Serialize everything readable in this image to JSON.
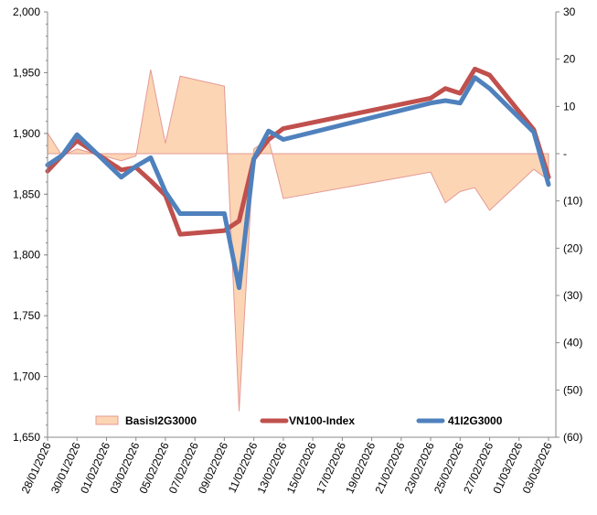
{
  "chart_data": {
    "type": "line",
    "title": "",
    "dates": [
      "28/01/2026",
      "29/01/2026",
      "30/01/2026",
      "02/02/2026",
      "03/02/2026",
      "04/02/2026",
      "05/02/2026",
      "06/02/2026",
      "09/02/2026",
      "10/02/2026",
      "11/02/2026",
      "12/02/2026",
      "13/02/2026",
      "23/02/2026",
      "24/02/2026",
      "25/02/2026",
      "26/02/2026",
      "27/02/2026",
      "02/03/2026",
      "03/03/2026"
    ],
    "day_offsets": [
      0,
      1,
      2,
      5,
      6,
      7,
      8,
      9,
      12,
      13,
      14,
      15,
      16,
      26,
      27,
      28,
      29,
      30,
      33,
      34
    ],
    "x_tick_labels": [
      "28/01/2026",
      "30/01/2026",
      "01/02/2026",
      "03/02/2026",
      "05/02/2026",
      "07/02/2026",
      "09/02/2026",
      "11/02/2026",
      "13/02/2026",
      "15/02/2026",
      "17/02/2026",
      "19/02/2026",
      "21/02/2026",
      "23/02/2026",
      "25/02/2026",
      "27/02/2026",
      "01/03/2026",
      "03/03/2026"
    ],
    "y_left": {
      "min": 1650,
      "max": 2000,
      "step": 50,
      "tick_labels": [
        "2,000",
        "1,950",
        "1,900",
        "1,850",
        "1,800",
        "1,750",
        "1,700",
        "1,650"
      ]
    },
    "y_right": {
      "min": -60,
      "max": 30,
      "step": 10,
      "tick_labels": [
        "30",
        "20",
        "10",
        "-",
        "(10)",
        "(20)",
        "(30)",
        "(40)",
        "(50)",
        "(60)"
      ]
    },
    "series": [
      {
        "name": "BasisI2G3000",
        "type": "area",
        "axis": "right",
        "color": "#fcd5b4",
        "stroke": "#e39a96",
        "values": [
          4.4,
          -0.5,
          1.0,
          -1.5,
          -0.5,
          17.8,
          2.2,
          16.4,
          14.3,
          -54.5,
          1.0,
          3.1,
          -9.5,
          -3.9,
          -10.4,
          -8.0,
          -7.2,
          -12.0,
          -3.3,
          -5.6
        ]
      },
      {
        "name": "VN100-Index",
        "type": "line",
        "axis": "left",
        "color": "#c0504d",
        "values": [
          1869,
          1882,
          1894,
          1870,
          1872,
          1861,
          1849,
          1817,
          1820,
          1828,
          1879,
          1895,
          1904,
          1929,
          1937,
          1933,
          1953,
          1948,
          1903,
          1864
        ]
      },
      {
        "name": "41I2G3000",
        "type": "line",
        "axis": "left",
        "color": "#4f81bd",
        "values": [
          1874,
          1882,
          1899,
          1864,
          1873,
          1880,
          1852,
          1834,
          1834,
          1773,
          1879,
          1902,
          1895,
          1925,
          1927,
          1925,
          1946,
          1937,
          1901,
          1858
        ]
      }
    ],
    "legend": "bottom-inside"
  }
}
